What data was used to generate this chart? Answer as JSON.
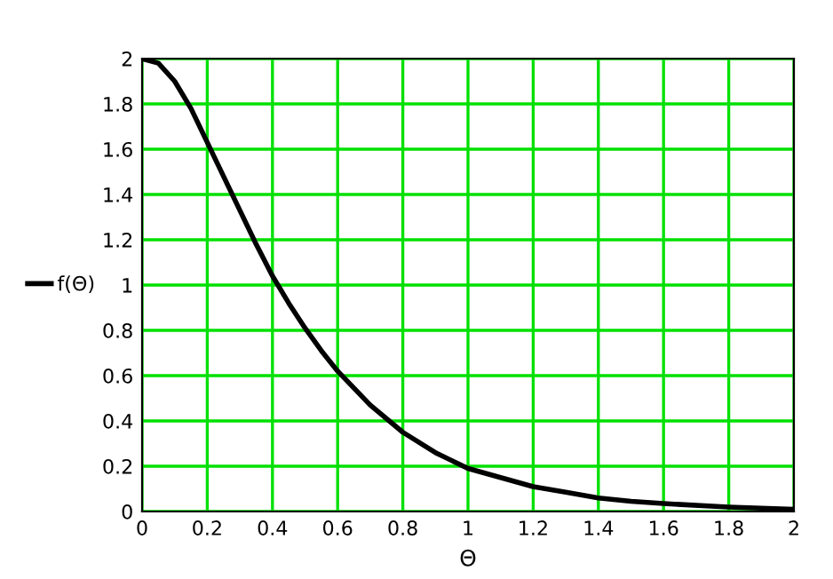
{
  "chart_data": {
    "type": "line",
    "xlabel": "Θ",
    "x": [
      0,
      0.05,
      0.1,
      0.15,
      0.2,
      0.25,
      0.3,
      0.35,
      0.4,
      0.45,
      0.5,
      0.55,
      0.6,
      0.7,
      0.8,
      0.9,
      1.0,
      1.1,
      1.2,
      1.3,
      1.4,
      1.5,
      1.6,
      1.8,
      2.0
    ],
    "series": [
      {
        "name": "f(Θ)",
        "color": "#000000",
        "values": [
          2.0,
          1.98,
          1.9,
          1.78,
          1.63,
          1.48,
          1.33,
          1.18,
          1.04,
          0.92,
          0.81,
          0.71,
          0.62,
          0.47,
          0.35,
          0.26,
          0.19,
          0.15,
          0.11,
          0.085,
          0.06,
          0.045,
          0.035,
          0.02,
          0.01
        ]
      }
    ],
    "xlim": [
      0,
      2
    ],
    "ylim": [
      0,
      2
    ],
    "xticks": [
      0,
      0.2,
      0.4,
      0.6,
      0.8,
      1,
      1.2,
      1.4,
      1.6,
      1.8,
      2
    ],
    "yticks": [
      0,
      0.2,
      0.4,
      0.6,
      0.8,
      1,
      1.2,
      1.4,
      1.6,
      1.8,
      2
    ],
    "grid": true,
    "legend": "left",
    "marker": "none",
    "line_style": "solid"
  }
}
